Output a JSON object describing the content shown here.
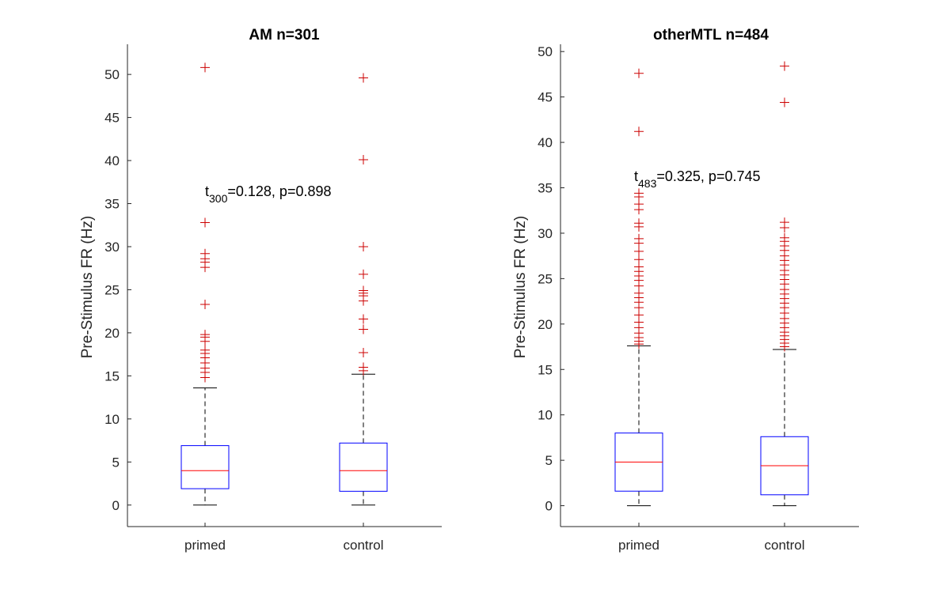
{
  "chart_data": [
    {
      "type": "box",
      "title": "AM n=301",
      "ylabel": "Pre-Stimulus FR (Hz)",
      "categories": [
        "primed",
        "control"
      ],
      "ylim": [
        -2.5,
        53.5
      ],
      "yticks": [
        "0",
        "5",
        "10",
        "15",
        "20",
        "25",
        "30",
        "35",
        "40",
        "45",
        "50"
      ],
      "annotation": {
        "prefix": "t",
        "subscript": "300",
        "text": "=0.128, p=0.898",
        "x_category": 1.0,
        "y": 35.6
      },
      "boxes": [
        {
          "category": "primed",
          "whisker_low": 0,
          "q1": 1.9,
          "median": 4.0,
          "q3": 6.9,
          "whisker_high": 13.6,
          "outliers": [
            14.8,
            15.4,
            15.9,
            16.5,
            17.1,
            17.6,
            18.0,
            19.0,
            19.5,
            19.8,
            23.3,
            27.6,
            28.2,
            28.6,
            29.2,
            32.8,
            50.8
          ]
        },
        {
          "category": "control",
          "whisker_low": 0,
          "q1": 1.6,
          "median": 4.0,
          "q3": 7.2,
          "whisker_high": 15.2,
          "outliers": [
            15.6,
            16.0,
            17.7,
            20.4,
            21.6,
            23.7,
            24.3,
            24.6,
            24.9,
            26.8,
            30.0,
            40.1,
            49.6
          ]
        }
      ],
      "colors": {
        "box": "#0000ff",
        "median": "#ff0000",
        "outlier": "#cc0000",
        "whisker": "#000000"
      }
    },
    {
      "type": "box",
      "title": "otherMTL n=484",
      "ylabel": "Pre-Stimulus FR (Hz)",
      "categories": [
        "primed",
        "control"
      ],
      "ylim": [
        -2.3,
        50.8
      ],
      "yticks": [
        "0",
        "5",
        "10",
        "15",
        "20",
        "25",
        "30",
        "35",
        "40",
        "45",
        "50"
      ],
      "annotation": {
        "prefix": "t",
        "subscript": "483",
        "text": "=0.325, p=0.745",
        "x_category": 1.0,
        "y": 35.2
      },
      "boxes": [
        {
          "category": "primed",
          "whisker_low": 0,
          "q1": 1.6,
          "median": 4.8,
          "q3": 8.0,
          "whisker_high": 17.6,
          "outliers": [
            17.8,
            18.1,
            18.5,
            19.0,
            19.6,
            20.2,
            21.0,
            21.8,
            22.4,
            22.9,
            23.4,
            24.2,
            24.8,
            25.3,
            25.8,
            26.3,
            27.1,
            28.0,
            28.9,
            29.4,
            30.7,
            31.1,
            32.6,
            33.2,
            34.0,
            34.4,
            41.2,
            47.6
          ]
        },
        {
          "category": "control",
          "whisker_low": 0,
          "q1": 1.2,
          "median": 4.4,
          "q3": 7.6,
          "whisker_high": 17.2,
          "outliers": [
            17.5,
            17.9,
            18.3,
            18.7,
            19.1,
            19.6,
            20.1,
            20.6,
            21.2,
            21.8,
            22.3,
            22.8,
            23.3,
            23.8,
            24.4,
            24.9,
            25.4,
            25.9,
            26.5,
            27.0,
            27.5,
            28.1,
            28.6,
            29.1,
            29.5,
            30.6,
            31.2,
            44.4,
            48.4
          ]
        }
      ],
      "colors": {
        "box": "#0000ff",
        "median": "#ff0000",
        "outlier": "#cc0000",
        "whisker": "#000000"
      }
    }
  ]
}
